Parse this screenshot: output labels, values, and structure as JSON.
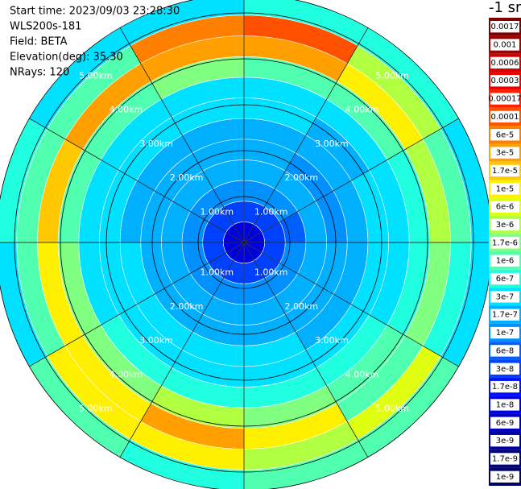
{
  "chart_data": {
    "type": "ppi",
    "info": [
      "Start time: 2023/09/03 23:28:30",
      "WLS200s-181",
      "Field: BETA",
      "Elevation(deg): 35.30",
      "NRays: 120"
    ],
    "colorbar_title": "-1 sr",
    "rlim": [
      0,
      5.4
    ],
    "rticks": [
      {
        "value": 1,
        "label": "1.00km"
      },
      {
        "value": 2,
        "label": "2.00km"
      },
      {
        "value": 3,
        "label": "3.00km"
      },
      {
        "value": 4,
        "label": "4.00km"
      },
      {
        "value": 5,
        "label": "5.00km"
      }
    ],
    "colorbar": [
      {
        "value": 0.0017,
        "label": "0.0017",
        "color": "#7f0000"
      },
      {
        "value": 0.001,
        "label": "0.001",
        "color": "#a00000"
      },
      {
        "value": 0.0006,
        "label": "0.0006",
        "color": "#d00000"
      },
      {
        "value": 0.0003,
        "label": "0.0003",
        "color": "#f00000"
      },
      {
        "value": 0.00017,
        "label": "0.00017",
        "color": "#ff2000"
      },
      {
        "value": 0.0001,
        "label": "0.0001",
        "color": "#ff5000"
      },
      {
        "value": 6e-05,
        "label": "6e-5",
        "color": "#ff8000"
      },
      {
        "value": 3e-05,
        "label": "3e-5",
        "color": "#ffa000"
      },
      {
        "value": 1.7e-05,
        "label": "1.7e-5",
        "color": "#ffc800"
      },
      {
        "value": 1e-05,
        "label": "1e-5",
        "color": "#fff000"
      },
      {
        "value": 6e-06,
        "label": "6e-6",
        "color": "#e0ff10"
      },
      {
        "value": 3e-06,
        "label": "3e-6",
        "color": "#b0ff40"
      },
      {
        "value": 1.7e-06,
        "label": "1.7e-6",
        "color": "#80ff80"
      },
      {
        "value": 1e-06,
        "label": "1e-6",
        "color": "#50ffb0"
      },
      {
        "value": 6e-07,
        "label": "6e-7",
        "color": "#20ffe0"
      },
      {
        "value": 3e-07,
        "label": "3e-7",
        "color": "#00e0ff"
      },
      {
        "value": 1.7e-07,
        "label": "1.7e-7",
        "color": "#00b0ff"
      },
      {
        "value": 1e-07,
        "label": "1e-7",
        "color": "#0090ff"
      },
      {
        "value": 6e-08,
        "label": "6e-8",
        "color": "#0060ff"
      },
      {
        "value": 3e-08,
        "label": "3e-8",
        "color": "#0040ff"
      },
      {
        "value": 1.7e-08,
        "label": "1.7e-8",
        "color": "#0010ff"
      },
      {
        "value": 1e-08,
        "label": "1e-8",
        "color": "#0000e0"
      },
      {
        "value": 6e-09,
        "label": "6e-9",
        "color": "#0000c0"
      },
      {
        "value": 3e-09,
        "label": "3e-9",
        "color": "#0000a0"
      },
      {
        "value": 1.7e-09,
        "label": "1.7e-9",
        "color": "#000080"
      },
      {
        "value": 1e-09,
        "label": "1e-9",
        "color": "#00006a"
      }
    ],
    "values": [
      [
        1e-08,
        3e-08,
        1e-07,
        1.7e-07,
        1.7e-07,
        1.7e-07,
        3e-07,
        3e-07,
        1e-06,
        3e-05,
        0.0001,
        6e-07
      ],
      [
        1e-08,
        3e-08,
        1e-07,
        1.7e-07,
        1e-07,
        1.7e-07,
        1.7e-07,
        3e-07,
        1e-06,
        1e-05,
        3e-06,
        6e-07
      ],
      [
        1e-08,
        3e-08,
        6e-08,
        1.7e-07,
        1e-07,
        1.7e-07,
        3e-07,
        3e-07,
        6e-07,
        3e-06,
        1e-06,
        3e-07
      ],
      [
        1e-08,
        3e-08,
        1e-07,
        1.7e-07,
        1.7e-07,
        1.7e-07,
        3e-07,
        3e-07,
        6e-07,
        1.7e-06,
        6e-07,
        3e-07
      ],
      [
        1e-08,
        3e-08,
        1e-07,
        1.7e-07,
        1.7e-07,
        1.7e-07,
        3e-07,
        6e-07,
        1e-06,
        1e-06,
        6e-06,
        1e-06
      ],
      [
        1e-08,
        3e-08,
        1e-07,
        1.7e-07,
        1.7e-07,
        3e-07,
        3e-07,
        6e-07,
        1.7e-06,
        1e-05,
        3e-06,
        1e-06
      ],
      [
        1e-08,
        3e-08,
        1e-07,
        1.7e-07,
        1.7e-07,
        3e-07,
        3e-07,
        6e-07,
        3e-06,
        3e-05,
        1e-05,
        6e-07
      ],
      [
        1e-08,
        3e-08,
        1e-07,
        1.7e-07,
        1.7e-07,
        3e-07,
        3e-07,
        6e-07,
        1.7e-06,
        1e-05,
        1e-05,
        1e-06
      ],
      [
        1e-08,
        3e-08,
        1e-07,
        1.7e-07,
        1.7e-07,
        3e-07,
        3e-07,
        3e-07,
        1.7e-06,
        1e-05,
        1e-06,
        3e-07
      ],
      [
        1e-08,
        3e-08,
        1e-07,
        1.7e-07,
        1.7e-07,
        1.7e-07,
        3e-07,
        3e-07,
        1e-06,
        1.7e-05,
        1e-06,
        6e-07
      ],
      [
        1e-08,
        3e-08,
        1e-07,
        1.7e-07,
        1.7e-07,
        1.7e-07,
        3e-07,
        3e-07,
        1e-06,
        3e-05,
        1e-06,
        3e-07
      ],
      [
        1e-08,
        3e-08,
        1e-07,
        1.7e-07,
        1.7e-07,
        1.7e-07,
        3e-07,
        3e-07,
        1.7e-06,
        3e-05,
        6e-05,
        3e-07
      ]
    ]
  }
}
